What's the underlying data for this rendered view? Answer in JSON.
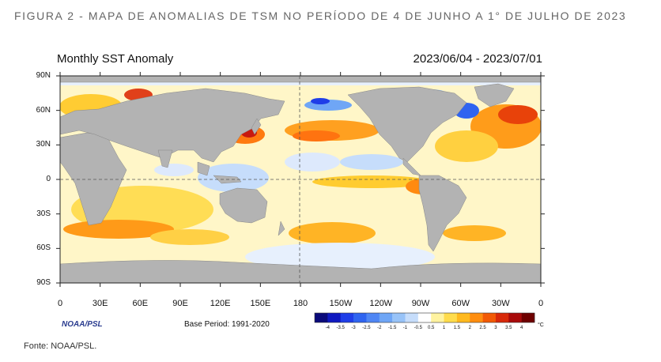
{
  "figure_caption": "FIGURA 2 - MAPA DE ANOMALIAS DE TSM NO PERÍODO DE 4 DE JUNHO A 1° DE JULHO DE 2023",
  "map": {
    "title": "Monthly SST Anomaly",
    "period": "2023/06/04 - 2023/07/01",
    "lat_labels": [
      "90N",
      "60N",
      "30N",
      "0",
      "30S",
      "60S",
      "90S"
    ],
    "lon_labels": [
      "0",
      "30E",
      "60E",
      "90E",
      "120E",
      "150E",
      "180",
      "150W",
      "120W",
      "90W",
      "60W",
      "30W",
      "0"
    ],
    "credit": "NOAA/PSL",
    "base_period": "Base Period: 1991-2020"
  },
  "colorbar": {
    "ticks": [
      "-4",
      "-3.5",
      "-3",
      "-2.5",
      "-2",
      "-1.5",
      "-1",
      "-0.5",
      "0.5",
      "1",
      "1.5",
      "2",
      "2.5",
      "3",
      "3.5",
      "4"
    ],
    "unit": "°C",
    "colors": [
      "#0a0a7a",
      "#0f19c0",
      "#1f3ee8",
      "#2f64f0",
      "#4f86f4",
      "#6fa6f6",
      "#98c3f8",
      "#c6ddfb",
      "#ffffff",
      "#fff3a0",
      "#ffdc4c",
      "#ffb91e",
      "#ff8e0f",
      "#f25a06",
      "#d8290a",
      "#a80a0a",
      "#6e0000"
    ]
  },
  "source": "Fonte:  NOAA/PSL."
}
